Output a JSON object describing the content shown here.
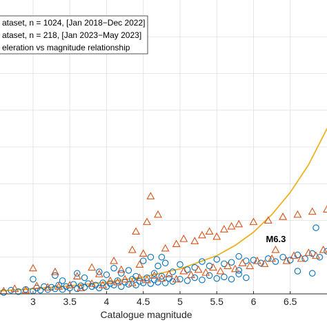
{
  "chart_data": {
    "type": "scatter",
    "xlabel": "Catalogue magnitude",
    "ylabel": "",
    "xlim": [
      2.55,
      7.0
    ],
    "ylim": [
      0,
      4.0
    ],
    "xticks": [
      3,
      3.5,
      4,
      4.5,
      5,
      5.5,
      6,
      6.5
    ],
    "tick_labels": [
      "3",
      "3.5",
      "4",
      "4.5",
      "5",
      "5.5",
      "6",
      "6.5"
    ],
    "grid": true,
    "legend_position": "top-left",
    "legend": [
      "ataset, n = 1024, [Jan 2018−Dec 2022]",
      "ataset, n = 218, [Jan 2023−May 2023]",
      "eleration vs magnitude relationship"
    ],
    "annotation": {
      "text": "M6.3",
      "x": 6.3,
      "y": 0.6
    },
    "colors": {
      "series1": "#0072BD",
      "series2": "#D95319",
      "curve": "#EDB120"
    },
    "series": [
      {
        "marker": "circle",
        "points": [
          [
            2.6,
            0.02
          ],
          [
            2.7,
            0.05
          ],
          [
            2.8,
            0.03
          ],
          [
            2.9,
            0.06
          ],
          [
            3.0,
            0.04
          ],
          [
            3.05,
            0.08
          ],
          [
            3.1,
            0.05
          ],
          [
            3.15,
            0.1
          ],
          [
            3.2,
            0.06
          ],
          [
            3.25,
            0.09
          ],
          [
            3.3,
            0.07
          ],
          [
            3.35,
            0.12
          ],
          [
            3.4,
            0.06
          ],
          [
            3.45,
            0.1
          ],
          [
            3.5,
            0.08
          ],
          [
            3.55,
            0.13
          ],
          [
            3.6,
            0.07
          ],
          [
            3.65,
            0.11
          ],
          [
            3.7,
            0.09
          ],
          [
            3.75,
            0.14
          ],
          [
            3.8,
            0.1
          ],
          [
            3.85,
            0.12
          ],
          [
            3.9,
            0.08
          ],
          [
            3.95,
            0.15
          ],
          [
            4.0,
            0.1
          ],
          [
            4.05,
            0.14
          ],
          [
            4.1,
            0.12
          ],
          [
            4.15,
            0.18
          ],
          [
            4.2,
            0.1
          ],
          [
            4.25,
            0.16
          ],
          [
            4.3,
            0.13
          ],
          [
            4.35,
            0.2
          ],
          [
            4.4,
            0.12
          ],
          [
            4.45,
            0.17
          ],
          [
            4.5,
            0.15
          ],
          [
            4.55,
            0.22
          ],
          [
            4.6,
            0.14
          ],
          [
            4.65,
            0.19
          ],
          [
            4.7,
            0.16
          ],
          [
            4.75,
            0.24
          ],
          [
            4.8,
            0.15
          ],
          [
            4.85,
            0.21
          ],
          [
            4.9,
            0.17
          ],
          [
            5.0,
            0.2
          ],
          [
            5.1,
            0.18
          ],
          [
            5.2,
            0.22
          ],
          [
            5.3,
            0.19
          ],
          [
            5.4,
            0.25
          ],
          [
            5.5,
            0.21
          ],
          [
            5.6,
            0.23
          ],
          [
            5.7,
            0.2
          ],
          [
            5.8,
            0.27
          ],
          [
            5.9,
            0.22
          ],
          [
            3.0,
            0.2
          ],
          [
            3.3,
            0.25
          ],
          [
            3.6,
            0.28
          ],
          [
            3.9,
            0.3
          ],
          [
            4.0,
            0.26
          ],
          [
            4.1,
            0.35
          ],
          [
            4.3,
            0.32
          ],
          [
            4.5,
            0.45
          ],
          [
            4.6,
            0.5
          ],
          [
            4.65,
            0.28
          ],
          [
            4.7,
            0.38
          ],
          [
            4.8,
            0.42
          ],
          [
            4.9,
            0.3
          ],
          [
            5.0,
            0.4
          ],
          [
            5.1,
            0.33
          ],
          [
            5.2,
            0.36
          ],
          [
            5.3,
            0.44
          ],
          [
            5.4,
            0.38
          ],
          [
            5.5,
            0.47
          ],
          [
            5.6,
            0.41
          ],
          [
            5.7,
            0.43
          ],
          [
            5.8,
            0.51
          ],
          [
            5.9,
            0.45
          ],
          [
            6.0,
            0.46
          ],
          [
            6.1,
            0.42
          ],
          [
            6.2,
            0.48
          ],
          [
            6.3,
            0.44
          ],
          [
            6.4,
            0.5
          ],
          [
            6.5,
            0.46
          ],
          [
            6.6,
            0.53
          ],
          [
            6.7,
            0.48
          ],
          [
            6.8,
            0.55
          ],
          [
            6.9,
            0.5
          ],
          [
            7.0,
            0.58
          ],
          [
            3.4,
            0.18
          ],
          [
            3.7,
            0.22
          ],
          [
            4.2,
            0.28
          ],
          [
            4.4,
            0.24
          ],
          [
            5.8,
            0.32
          ],
          [
            6.6,
            0.31
          ],
          [
            6.8,
            0.28
          ],
          [
            6.85,
            0.9
          ],
          [
            4.75,
            0.5
          ]
        ]
      },
      {
        "marker": "triangle",
        "points": [
          [
            2.6,
            0.04
          ],
          [
            2.75,
            0.07
          ],
          [
            2.9,
            0.05
          ],
          [
            3.05,
            0.11
          ],
          [
            3.2,
            0.09
          ],
          [
            3.35,
            0.1
          ],
          [
            3.5,
            0.12
          ],
          [
            3.65,
            0.08
          ],
          [
            3.8,
            0.14
          ],
          [
            3.95,
            0.12
          ],
          [
            4.05,
            0.18
          ],
          [
            4.15,
            0.16
          ],
          [
            4.25,
            0.2
          ],
          [
            4.35,
            0.15
          ],
          [
            4.45,
            0.22
          ],
          [
            4.55,
            0.19
          ],
          [
            4.65,
            0.25
          ],
          [
            4.75,
            0.21
          ],
          [
            4.85,
            0.27
          ],
          [
            4.95,
            0.2
          ],
          [
            5.05,
            0.31
          ],
          [
            5.15,
            0.26
          ],
          [
            5.25,
            0.33
          ],
          [
            5.35,
            0.29
          ],
          [
            5.45,
            0.36
          ],
          [
            5.55,
            0.31
          ],
          [
            5.65,
            0.38
          ],
          [
            5.75,
            0.34
          ],
          [
            5.85,
            0.42
          ],
          [
            5.95,
            0.38
          ],
          [
            6.05,
            0.45
          ],
          [
            6.15,
            0.41
          ],
          [
            6.25,
            0.48
          ],
          [
            6.3,
            0.6
          ],
          [
            6.45,
            0.45
          ],
          [
            6.55,
            0.52
          ],
          [
            6.65,
            0.48
          ],
          [
            6.75,
            0.56
          ],
          [
            6.85,
            0.52
          ],
          [
            6.95,
            0.6
          ],
          [
            4.6,
            1.33
          ],
          [
            4.7,
            1.08
          ],
          [
            4.55,
            0.98
          ],
          [
            4.4,
            0.85
          ],
          [
            3.0,
            0.35
          ],
          [
            3.3,
            0.3
          ],
          [
            3.6,
            0.24
          ],
          [
            3.9,
            0.27
          ],
          [
            4.2,
            0.33
          ],
          [
            4.45,
            0.4
          ],
          [
            4.5,
            0.55
          ],
          [
            4.8,
            0.62
          ],
          [
            4.95,
            0.68
          ],
          [
            5.05,
            0.75
          ],
          [
            5.2,
            0.72
          ],
          [
            5.3,
            0.8
          ],
          [
            5.4,
            0.85
          ],
          [
            5.5,
            0.78
          ],
          [
            5.6,
            0.88
          ],
          [
            5.7,
            0.92
          ],
          [
            5.8,
            0.95
          ],
          [
            6.0,
            0.98
          ],
          [
            6.2,
            1.0
          ],
          [
            6.4,
            1.05
          ],
          [
            6.6,
            1.08
          ],
          [
            6.8,
            1.12
          ],
          [
            7.0,
            1.15
          ],
          [
            4.35,
            0.6
          ],
          [
            4.1,
            0.45
          ],
          [
            3.8,
            0.36
          ]
        ]
      }
    ],
    "curve": [
      [
        2.55,
        0.04
      ],
      [
        3.0,
        0.07
      ],
      [
        3.5,
        0.11
      ],
      [
        4.0,
        0.16
      ],
      [
        4.5,
        0.23
      ],
      [
        5.0,
        0.34
      ],
      [
        5.5,
        0.52
      ],
      [
        5.75,
        0.66
      ],
      [
        6.0,
        0.84
      ],
      [
        6.25,
        1.08
      ],
      [
        6.5,
        1.38
      ],
      [
        6.75,
        1.76
      ],
      [
        7.0,
        2.25
      ]
    ]
  }
}
